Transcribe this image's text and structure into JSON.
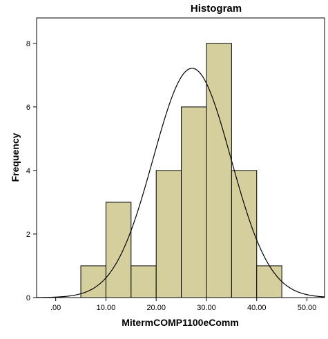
{
  "chart_data": {
    "type": "bar",
    "title": "Histogram",
    "xlabel": "MitermCOMP1100eComm",
    "ylabel": "Frequency",
    "bins": [
      {
        "start": 5,
        "end": 10,
        "count": 1
      },
      {
        "start": 10,
        "end": 15,
        "count": 3
      },
      {
        "start": 15,
        "end": 20,
        "count": 1
      },
      {
        "start": 20,
        "end": 25,
        "count": 4
      },
      {
        "start": 25,
        "end": 30,
        "count": 6
      },
      {
        "start": 30,
        "end": 35,
        "count": 8
      },
      {
        "start": 35,
        "end": 40,
        "count": 4
      },
      {
        "start": 40,
        "end": 45,
        "count": 1
      }
    ],
    "normal_curve": {
      "mean": 27.14,
      "sd": 7.74,
      "n": 28,
      "bin_width": 5
    },
    "xlim": [
      -3.8,
      53.5
    ],
    "ylim": [
      0,
      8.8
    ],
    "x_ticks": [
      0,
      10,
      20,
      30,
      40,
      50
    ],
    "x_tick_labels": [
      ".00",
      "10.00",
      "20.00",
      "30.00",
      "40.00",
      "50.00"
    ],
    "y_ticks": [
      0,
      2,
      4,
      6,
      8
    ],
    "y_tick_labels": [
      "0",
      "2",
      "4",
      "6",
      "8"
    ],
    "grid": false,
    "colors": {
      "bar_fill": "#D4CF9C",
      "bar_stroke": "#000000",
      "curve": "#000000"
    }
  }
}
